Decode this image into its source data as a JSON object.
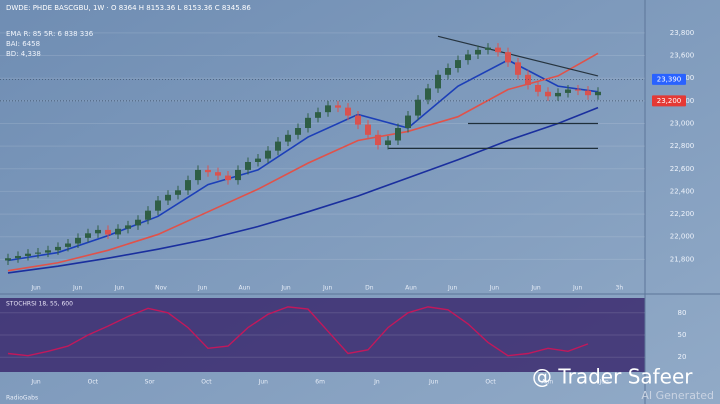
{
  "chart_data": [
    {
      "type": "candlestick",
      "title": "DWDE: PHDE BASCGBU, 1W · O 8364  H 8153.36  L 8153.36  C 8345.86",
      "info_lines": [
        "EMA R: 85 5R: 6 838 336",
        "BAI: 6458",
        "BD: 4,338"
      ],
      "open": [
        21790,
        21810,
        21830,
        21850,
        21860,
        21880,
        21910,
        21940,
        21990,
        22030,
        22060,
        22020,
        22070,
        22100,
        22150,
        22230,
        22320,
        22370,
        22410,
        22500,
        22590,
        22570,
        22540,
        22500,
        22590,
        22660,
        22690,
        22760,
        22840,
        22900,
        22960,
        23050,
        23100,
        23160,
        23140,
        23070,
        22990,
        22900,
        22810,
        22850,
        22960,
        23070,
        23210,
        23310,
        23430,
        23490,
        23560,
        23610,
        23650,
        23670,
        23630,
        23540,
        23430,
        23340,
        23280,
        23240,
        23270,
        23300,
        23290,
        23250
      ],
      "close": [
        21810,
        21830,
        21850,
        21860,
        21880,
        21910,
        21940,
        21990,
        22030,
        22060,
        22020,
        22070,
        22100,
        22150,
        22230,
        22320,
        22370,
        22410,
        22500,
        22590,
        22570,
        22540,
        22500,
        22590,
        22660,
        22690,
        22760,
        22840,
        22900,
        22960,
        23050,
        23100,
        23160,
        23140,
        23070,
        22990,
        22900,
        22810,
        22850,
        22960,
        23070,
        23210,
        23310,
        23430,
        23490,
        23560,
        23610,
        23650,
        23670,
        23630,
        23540,
        23430,
        23340,
        23280,
        23240,
        23270,
        23300,
        23290,
        23250,
        23280
      ],
      "high": [
        21850,
        21870,
        21890,
        21900,
        21920,
        21950,
        21980,
        22030,
        22070,
        22100,
        22100,
        22110,
        22140,
        22190,
        22270,
        22360,
        22410,
        22450,
        22540,
        22630,
        22630,
        22610,
        22580,
        22630,
        22700,
        22730,
        22800,
        22880,
        22940,
        23000,
        23090,
        23140,
        23200,
        23200,
        23180,
        23110,
        23030,
        22940,
        22890,
        23000,
        23110,
        23250,
        23350,
        23470,
        23530,
        23600,
        23650,
        23690,
        23710,
        23710,
        23670,
        23580,
        23470,
        23380,
        23320,
        23310,
        23340,
        23340,
        23330,
        23320
      ],
      "low": [
        21750,
        21770,
        21790,
        21810,
        21820,
        21840,
        21870,
        21900,
        21950,
        21990,
        21980,
        21980,
        22030,
        22060,
        22110,
        22190,
        22280,
        22330,
        22370,
        22460,
        22530,
        22500,
        22460,
        22460,
        22550,
        22620,
        22650,
        22720,
        22800,
        22860,
        22920,
        23010,
        23060,
        23100,
        23030,
        22950,
        22860,
        22770,
        22770,
        22810,
        22920,
        23030,
        23170,
        23270,
        23390,
        23450,
        23520,
        23570,
        23610,
        23590,
        23500,
        23390,
        23300,
        23240,
        23200,
        23200,
        23230,
        23250,
        23210,
        23210
      ],
      "up_color": "#2f5e45",
      "down_color": "#d9534f",
      "lines": [
        {
          "color": "#1c3fb8",
          "x": [
            0,
            5,
            10,
            15,
            20,
            25,
            30,
            35,
            40,
            45,
            50,
            55,
            59
          ],
          "values": [
            21790,
            21860,
            22010,
            22180,
            22460,
            22590,
            22880,
            23080,
            22960,
            23330,
            23560,
            23330,
            23280
          ]
        },
        {
          "color": "#e0524a",
          "x": [
            0,
            5,
            10,
            15,
            20,
            25,
            30,
            35,
            40,
            45,
            50,
            55,
            59
          ],
          "values": [
            21700,
            21770,
            21880,
            22020,
            22220,
            22420,
            22650,
            22850,
            22930,
            23060,
            23300,
            23420,
            23620
          ]
        },
        {
          "color": "#1a2f9e",
          "x": [
            0,
            5,
            10,
            15,
            20,
            25,
            30,
            35,
            40,
            45,
            50,
            55,
            59
          ],
          "values": [
            21680,
            21740,
            21810,
            21890,
            21980,
            22090,
            22220,
            22360,
            22520,
            22680,
            22850,
            23000,
            23140
          ]
        }
      ],
      "levels": [
        {
          "value": 23000,
          "x": [
            46,
            59
          ]
        },
        {
          "value": 22780,
          "x": [
            38,
            59
          ]
        }
      ],
      "trendlines": [
        {
          "x": [
            43,
            59
          ],
          "values": [
            23770,
            23420
          ]
        }
      ],
      "price_tags": [
        {
          "value": 23390,
          "label": "23,390",
          "color": "#2962ff"
        },
        {
          "value": 23200,
          "label": "23,200",
          "color": "#e53935"
        }
      ],
      "ylim": [
        21600,
        24020
      ],
      "yticks": [
        {
          "value": 21800,
          "label": "21,800"
        },
        {
          "value": 22000,
          "label": "22,000"
        },
        {
          "value": 22200,
          "label": "22,200"
        },
        {
          "value": 22400,
          "label": "22,400"
        },
        {
          "value": 22600,
          "label": "22,600"
        },
        {
          "value": 22800,
          "label": "22,800"
        },
        {
          "value": 23000,
          "label": "23,000"
        },
        {
          "value": 23200,
          "label": "23,200"
        },
        {
          "value": 23400,
          "label": "23,400"
        },
        {
          "value": 23600,
          "label": "23,600"
        },
        {
          "value": 23800,
          "label": "23,800"
        }
      ],
      "xlabels": [
        "Jun",
        "Jun",
        "Jun",
        "Nov",
        "Jun",
        "Aun",
        "Jun",
        "Jun",
        "Dn",
        "Aun",
        "Jun",
        "Jun",
        "Jun",
        "Jun",
        "3h"
      ]
    },
    {
      "type": "line",
      "title": "STOCHRSI 18, 55, 600",
      "color": "#c2185b",
      "x": [
        0,
        2,
        4,
        6,
        8,
        10,
        12,
        14,
        16,
        18,
        20,
        22,
        24,
        26,
        28,
        30,
        32,
        34,
        36,
        38,
        40,
        42,
        44,
        46,
        48,
        50,
        52,
        54,
        56,
        58
      ],
      "values": [
        25,
        22,
        28,
        35,
        50,
        62,
        75,
        86,
        80,
        60,
        32,
        35,
        60,
        78,
        88,
        85,
        55,
        25,
        30,
        60,
        80,
        88,
        84,
        65,
        40,
        22,
        25,
        32,
        28,
        38
      ],
      "ylim": [
        0,
        100
      ],
      "yticks": [
        20,
        50,
        80
      ],
      "xlabels": [
        "Jun",
        "Oct",
        "Sor",
        "Oct",
        "Jun",
        "6m",
        "Jn",
        "Jun",
        "Oct",
        "Aun",
        "Jun"
      ],
      "footer": "RadioGabs",
      "watermark": "@ Trader Safeer",
      "note": "AI Generated"
    }
  ]
}
